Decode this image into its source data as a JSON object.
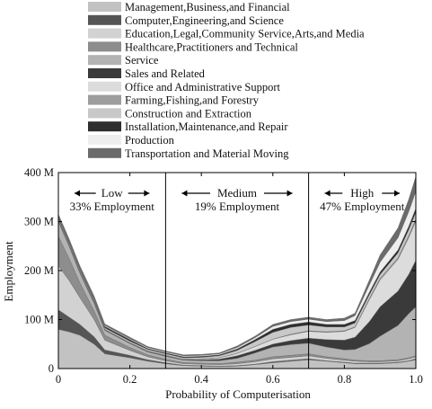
{
  "chart_data": {
    "type": "area",
    "xlabel": "Probability of Computerisation",
    "ylabel": "Employment",
    "xlim": [
      0,
      1
    ],
    "ylim": [
      0,
      400
    ],
    "x_ticks": [
      "0",
      "0.2",
      "0.4",
      "0.6",
      "0.8",
      "1.0"
    ],
    "y_ticks": [
      "0",
      "100 M",
      "200 M",
      "300 M",
      "400 M"
    ],
    "regions": [
      {
        "name": "Low",
        "share": "33% Employment",
        "x_from": 0,
        "x_to": 0.3
      },
      {
        "name": "Medium",
        "share": "19% Employment",
        "x_from": 0.3,
        "x_to": 0.7
      },
      {
        "name": "High",
        "share": "47% Employment",
        "x_from": 0.7,
        "x_to": 1.0
      }
    ],
    "boundaries": [
      0.3,
      0.7
    ],
    "x": [
      0.0,
      0.03,
      0.06,
      0.1,
      0.13,
      0.2,
      0.25,
      0.3,
      0.35,
      0.4,
      0.45,
      0.5,
      0.55,
      0.6,
      0.65,
      0.7,
      0.75,
      0.8,
      0.83,
      0.87,
      0.9,
      0.95,
      0.98,
      1.0
    ],
    "series": [
      {
        "name": "Management,Business,and Financial",
        "color": "#c2c2c2",
        "values": [
          80,
          75,
          68,
          50,
          30,
          22,
          15,
          10,
          6,
          5,
          4,
          5,
          8,
          12,
          15,
          18,
          15,
          12,
          10,
          10,
          10,
          12,
          15,
          18
        ]
      },
      {
        "name": "Computer,Engineering,and Science",
        "color": "#555555",
        "values": [
          40,
          30,
          22,
          15,
          8,
          5,
          3,
          2,
          1,
          1,
          1,
          1,
          1,
          2,
          2,
          2,
          1,
          1,
          1,
          1,
          1,
          1,
          1,
          2
        ]
      },
      {
        "name": "Education,Legal,Community Service,Arts,and Media",
        "color": "#d2d2d2",
        "values": [
          90,
          75,
          55,
          35,
          20,
          10,
          6,
          4,
          3,
          3,
          3,
          4,
          5,
          6,
          6,
          6,
          5,
          4,
          4,
          3,
          3,
          3,
          4,
          4
        ]
      },
      {
        "name": "Healthcare,Practitioners and Technical",
        "color": "#8d8d8d",
        "values": [
          60,
          45,
          30,
          18,
          10,
          6,
          4,
          3,
          2,
          2,
          2,
          3,
          3,
          4,
          4,
          4,
          3,
          3,
          2,
          2,
          2,
          2,
          2,
          2
        ]
      },
      {
        "name": "Service",
        "color": "#b3b3b3",
        "values": [
          30,
          25,
          20,
          15,
          10,
          8,
          6,
          6,
          5,
          5,
          6,
          8,
          15,
          20,
          22,
          22,
          20,
          18,
          22,
          35,
          50,
          70,
          90,
          100
        ]
      },
      {
        "name": "Sales and Related",
        "color": "#3a3a3a",
        "values": [
          2,
          2,
          2,
          2,
          1,
          1,
          1,
          1,
          1,
          2,
          3,
          5,
          5,
          6,
          8,
          10,
          15,
          20,
          25,
          45,
          60,
          70,
          80,
          95
        ]
      },
      {
        "name": "Office and Administrative Support",
        "color": "#dcdcdc",
        "values": [
          2,
          2,
          2,
          2,
          1,
          1,
          1,
          1,
          1,
          2,
          3,
          5,
          8,
          10,
          12,
          14,
          15,
          18,
          20,
          45,
          55,
          65,
          75,
          80
        ]
      },
      {
        "name": "Farming,Fishing,and Forestry",
        "color": "#9d9d9d",
        "values": [
          0,
          0,
          0,
          0,
          0,
          0,
          0,
          0,
          0,
          0,
          0,
          0,
          0,
          0,
          1,
          1,
          1,
          1,
          1,
          2,
          3,
          3,
          4,
          4
        ]
      },
      {
        "name": "Construction and Extraction",
        "color": "#c8c8c8",
        "values": [
          3,
          3,
          3,
          3,
          3,
          3,
          3,
          3,
          3,
          3,
          4,
          6,
          10,
          14,
          14,
          12,
          10,
          8,
          8,
          8,
          8,
          10,
          12,
          14
        ]
      },
      {
        "name": "Installation,Maintenance,and Repair",
        "color": "#2e2e2e",
        "values": [
          3,
          3,
          3,
          3,
          3,
          3,
          2,
          2,
          2,
          2,
          2,
          3,
          4,
          6,
          6,
          6,
          5,
          5,
          5,
          5,
          5,
          6,
          7,
          8
        ]
      },
      {
        "name": "Production",
        "color": "#eeeeee",
        "values": [
          2,
          2,
          2,
          2,
          2,
          2,
          2,
          2,
          2,
          2,
          2,
          3,
          4,
          6,
          6,
          6,
          6,
          8,
          10,
          15,
          20,
          25,
          30,
          35
        ]
      },
      {
        "name": "Transportation and Material Moving",
        "color": "#6b6b6b",
        "values": [
          3,
          3,
          3,
          3,
          3,
          3,
          2,
          2,
          2,
          2,
          2,
          3,
          3,
          4,
          4,
          4,
          4,
          5,
          5,
          10,
          15,
          20,
          25,
          30
        ]
      }
    ]
  }
}
